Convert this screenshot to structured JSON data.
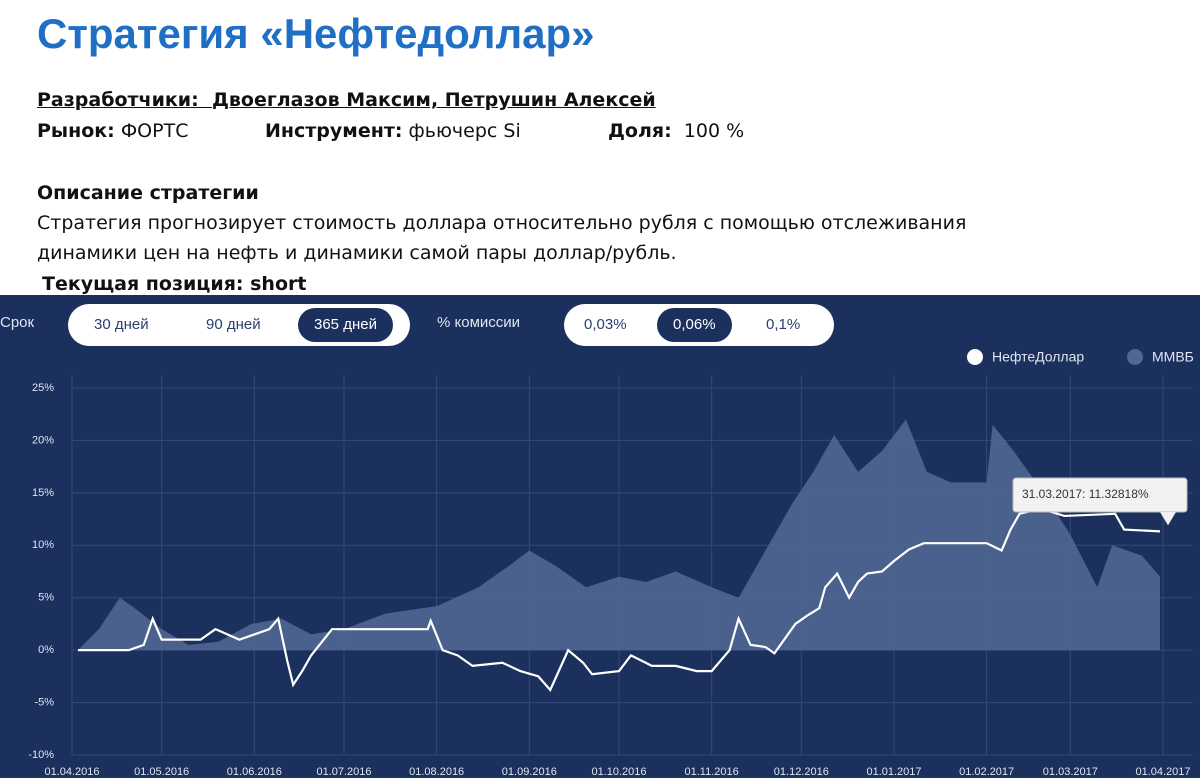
{
  "header": {
    "title": "Стратегия «Нефтедоллар»",
    "developers_label": "Разработчики:",
    "developers": "Двоеглазов Максим, Петрушин Алексей",
    "market_label": "Рынок:",
    "market": "ФОРТС",
    "instrument_label": "Инструмент:",
    "instrument": "фьючерс Si",
    "share_label": "Доля:",
    "share": "100 %",
    "description_title": "Описание стратегии",
    "description_lines": [
      "Стратегия прогнозирует стоимость доллара относительно рубля с помощью отслеживания",
      "динамики цен на нефть и динамики самой пары доллар/рубль."
    ],
    "position": "Текущая позиция: short"
  },
  "controls": {
    "period_label": "Срок",
    "periods": [
      "30 дней",
      "90 дней",
      "365 дней"
    ],
    "commission_label": "% комиссии",
    "commissions": [
      "0,03%",
      "0,06%",
      "0,1%"
    ]
  },
  "chart_data": {
    "type": "line",
    "xticks": [
      "01.04.2016",
      "01.05.2016",
      "01.06.2016",
      "01.07.2016",
      "01.08.2016",
      "01.09.2016",
      "01.10.2016",
      "01.11.2016",
      "01.12.2016",
      "01.01.2017",
      "01.02.2017",
      "01.03.2017",
      "01.04.2017"
    ],
    "xlim": [
      "01.04.2016",
      "01.04.2017"
    ],
    "ylim": [
      -10,
      25
    ],
    "yticks": [
      {
        "value": -10,
        "label": "-10%"
      },
      {
        "value": -5,
        "label": "-5%"
      },
      {
        "value": 0,
        "label": "0%"
      },
      {
        "value": 5,
        "label": "5%"
      },
      {
        "value": 10,
        "label": "10%"
      },
      {
        "value": 15,
        "label": "15%"
      },
      {
        "value": 20,
        "label": "20%"
      },
      {
        "value": 25,
        "label": "25%"
      }
    ],
    "grid": true,
    "tooltip": "31.03.2017: 11.32818%",
    "series": [
      {
        "name": "ММВБ",
        "color": "#4f6791",
        "style": "area",
        "x": [
          "03.04.2016",
          "10.04.2016",
          "17.04.2016",
          "22.04.2016",
          "01.05.2016",
          "10.05.2016",
          "20.05.2016",
          "31.05.2016",
          "10.06.2016",
          "20.06.2016",
          "01.07.2016",
          "15.07.2016",
          "01.08.2016",
          "15.08.2016",
          "25.08.2016",
          "01.09.2016",
          "10.09.2016",
          "20.09.2016",
          "01.10.2016",
          "10.10.2016",
          "20.10.2016",
          "01.11.2016",
          "10.11.2016",
          "20.11.2016",
          "28.11.2016",
          "05.12.2016",
          "12.12.2016",
          "20.12.2016",
          "28.12.2016",
          "05.01.2017",
          "12.01.2017",
          "20.01.2017",
          "01.02.2017",
          "03.02.2017",
          "10.02.2017",
          "20.02.2017",
          "01.03.2017",
          "10.03.2017",
          "15.03.2017",
          "25.03.2017",
          "31.03.2017"
        ],
        "values": [
          0,
          2,
          5,
          4,
          2,
          0.5,
          0.8,
          2.5,
          3,
          1.5,
          2,
          3.5,
          4.2,
          6,
          8,
          9.5,
          8,
          6,
          7,
          6.5,
          7.5,
          6,
          5,
          10,
          14,
          17,
          20.5,
          17,
          19,
          22,
          17,
          16,
          16,
          21.5,
          19,
          15,
          11,
          6,
          10,
          9,
          7
        ]
      },
      {
        "name": "НефтеДоллар",
        "color": "#ffffff",
        "style": "line",
        "x": [
          "03.04.2016",
          "20.04.2016",
          "25.04.2016",
          "28.04.2016",
          "01.05.2016",
          "14.05.2016",
          "19.05.2016",
          "27.05.2016",
          "06.06.2016",
          "09.06.2016",
          "12.06.2016",
          "14.06.2016",
          "17.06.2016",
          "20.06.2016",
          "27.06.2016",
          "29.07.2016",
          "30.07.2016",
          "03.08.2016",
          "08.08.2016",
          "13.08.2016",
          "23.08.2016",
          "29.08.2016",
          "04.09.2016",
          "08.09.2016",
          "14.09.2016",
          "19.09.2016",
          "22.09.2016",
          "01.10.2016",
          "05.10.2016",
          "12.10.2016",
          "20.10.2016",
          "27.10.2016",
          "01.11.2016",
          "07.11.2016",
          "10.11.2016",
          "14.11.2016",
          "19.11.2016",
          "22.11.2016",
          "29.11.2016",
          "03.12.2016",
          "07.12.2016",
          "09.12.2016",
          "13.12.2016",
          "17.12.2016",
          "20.12.2016",
          "23.12.2016",
          "28.12.2016",
          "01.01.2017",
          "06.01.2017",
          "11.01.2017",
          "01.02.2017",
          "06.02.2017",
          "09.02.2017",
          "12.02.2017",
          "19.02.2017",
          "27.02.2017",
          "16.03.2017",
          "19.03.2017",
          "31.03.2017"
        ],
        "values": [
          0,
          0,
          0.5,
          3,
          1,
          1,
          2,
          1,
          2,
          3,
          -1,
          -3.3,
          -2,
          -0.5,
          2,
          2,
          2.8,
          0,
          -0.5,
          -1.5,
          -1.2,
          -2,
          -2.5,
          -3.8,
          0,
          -1.2,
          -2.3,
          -2,
          -0.5,
          -1.5,
          -1.5,
          -2,
          -2,
          0,
          3,
          0.5,
          0.3,
          -0.3,
          2.5,
          3.3,
          4,
          6,
          7.3,
          5,
          6.5,
          7.3,
          7.5,
          8.5,
          9.6,
          10.2,
          10.2,
          9.5,
          11.5,
          13,
          13.5,
          12.8,
          13,
          11.5,
          11.32818
        ]
      }
    ]
  }
}
